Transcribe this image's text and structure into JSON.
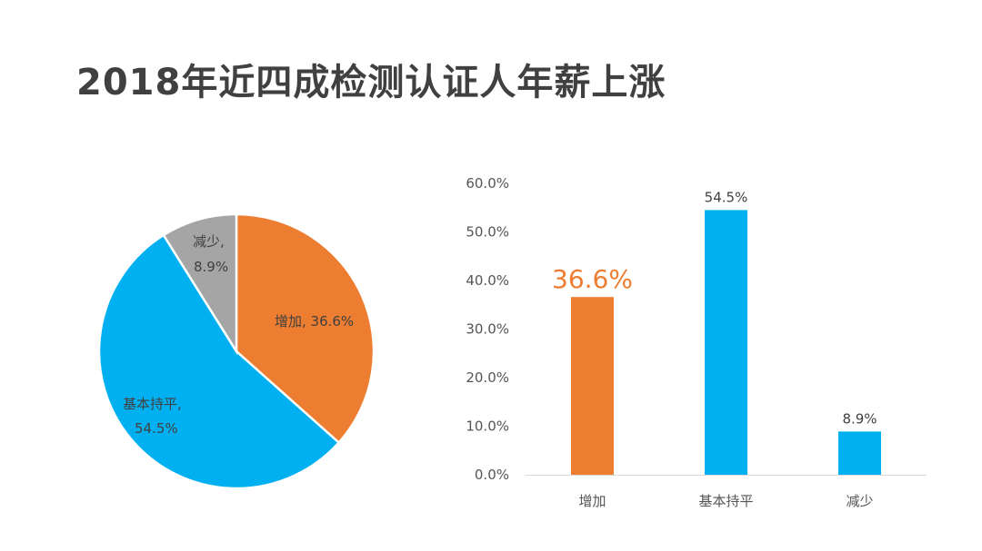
{
  "title": "2018年近四成检测认证人年薪上涨",
  "chart_data": [
    {
      "type": "pie",
      "categories": [
        "增加",
        "基本持平",
        "减少"
      ],
      "values": [
        36.6,
        54.5,
        8.9
      ],
      "labels": [
        "增加, 36.6%",
        "基本持平,",
        "54.5%",
        "减少,",
        "8.9%"
      ],
      "colors": [
        "#ED7D31",
        "#00B0F0",
        "#A5A5A5"
      ]
    },
    {
      "type": "bar",
      "categories": [
        "增加",
        "基本持平",
        "减少"
      ],
      "values": [
        36.6,
        54.5,
        8.9
      ],
      "data_labels": [
        "36.6%",
        "54.5%",
        "8.9%"
      ],
      "colors": [
        "#ED7D31",
        "#00B0F0",
        "#00B0F0"
      ],
      "ylim": [
        0,
        60
      ],
      "yticks": [
        "0.0%",
        "10.0%",
        "20.0%",
        "30.0%",
        "40.0%",
        "50.0%",
        "60.0%"
      ],
      "grid": false
    }
  ]
}
